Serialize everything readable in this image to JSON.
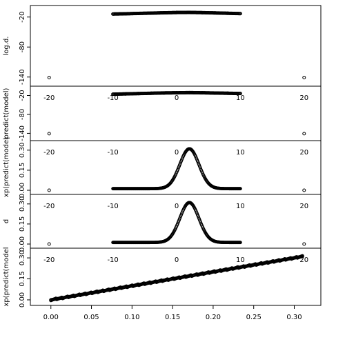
{
  "chart_data": [
    {
      "type": "scatter",
      "ylabel": "log.d.",
      "y_ticks": [
        "-20",
        "-80",
        "-140"
      ],
      "x_ticks": [
        "-20",
        "-10",
        "0",
        "10",
        "20"
      ],
      "xlim": [
        -21,
        21
      ],
      "ylim": [
        -150,
        -8
      ],
      "series": [
        {
          "x": [
            -20,
            -10,
            -8,
            -6,
            -4,
            -2,
            0,
            2,
            4,
            6,
            8,
            10,
            20
          ],
          "y": [
            -141,
            -14,
            -13.5,
            -12.8,
            -12.2,
            -11.5,
            -11,
            -10.8,
            -11.2,
            -11.8,
            -12.5,
            -13.2,
            -141
          ]
        }
      ]
    },
    {
      "type": "scatter",
      "ylabel": "predict(model)",
      "y_ticks": [
        "-20",
        "-80",
        "-140"
      ],
      "x_ticks": [
        "-20",
        "-10",
        "0",
        "10",
        "20"
      ],
      "xlim": [
        -21,
        21
      ],
      "ylim": [
        -150,
        -8
      ],
      "series": [
        {
          "x": [
            -20,
            -10,
            -8,
            -6,
            -4,
            -2,
            0,
            2,
            4,
            6,
            8,
            10,
            20
          ],
          "y": [
            -141,
            -16,
            -15,
            -14,
            -13,
            -12,
            -11.5,
            -11,
            -11.5,
            -12.3,
            -13,
            -13.8,
            -141
          ]
        }
      ]
    },
    {
      "type": "line",
      "ylabel": "xp(predict(model",
      "y_ticks": [
        "0.00",
        "0.15",
        "0.30"
      ],
      "x_ticks": [
        "-20",
        "-10",
        "0",
        "10",
        "20"
      ],
      "xlim": [
        -21,
        21
      ],
      "ylim": [
        0,
        0.33
      ],
      "peak": {
        "center": 2,
        "height": 0.31,
        "width": 1.5,
        "tail": 0.012
      },
      "endpoints": {
        "x": [
          -20,
          20
        ],
        "y": [
          0.0,
          0.0
        ]
      }
    },
    {
      "type": "line",
      "ylabel": "d",
      "y_ticks": [
        "0.00",
        "0.15",
        "0.30"
      ],
      "x_ticks": [
        "-20",
        "-10",
        "0",
        "10",
        "20"
      ],
      "xlim": [
        -21,
        21
      ],
      "ylim": [
        0,
        0.33
      ],
      "peak": {
        "center": 2,
        "height": 0.31,
        "width": 1.5,
        "tail": 0.012
      },
      "endpoints": {
        "x": [
          -20,
          20
        ],
        "y": [
          0.0,
          0.0
        ]
      }
    },
    {
      "type": "scatter",
      "ylabel": "xp(predict(model",
      "y_ticks": [
        "0.00",
        "0.15",
        "0.30"
      ],
      "x_ticks": [
        "0.00",
        "0.05",
        "0.10",
        "0.15",
        "0.20",
        "0.25",
        "0.30"
      ],
      "xlim": [
        -0.01,
        0.32
      ],
      "ylim": [
        -0.01,
        0.33
      ],
      "series": [
        {
          "x": [
            0.0,
            0.02,
            0.04,
            0.06,
            0.08,
            0.1,
            0.12,
            0.14,
            0.16,
            0.18,
            0.2,
            0.22,
            0.24,
            0.26,
            0.28,
            0.3,
            0.31
          ],
          "y": [
            0.0,
            0.02,
            0.04,
            0.06,
            0.08,
            0.1,
            0.12,
            0.14,
            0.16,
            0.18,
            0.2,
            0.22,
            0.24,
            0.26,
            0.28,
            0.3,
            0.31
          ]
        }
      ]
    }
  ]
}
